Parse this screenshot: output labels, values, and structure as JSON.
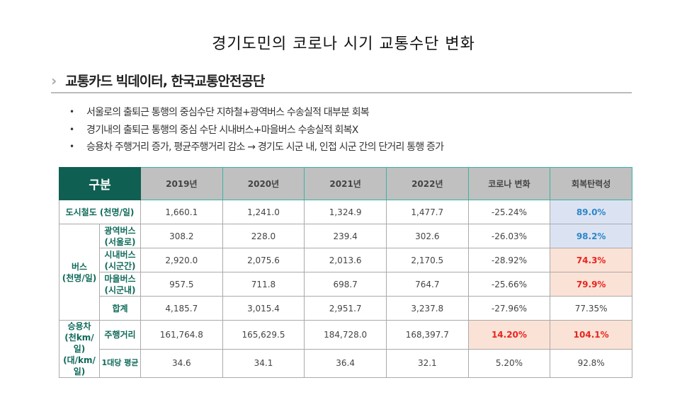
{
  "title": "경기도민의 코로나 시기 교통수단 변화",
  "section": {
    "icon": "chevron-right-icon",
    "heading": "교통카드 빅데이터, 한국교통안전공단"
  },
  "bullets": [
    "서울로의 출퇴근 통행의 중심수단 지하철+광역버스 수송실적 대부분 회복",
    "경기내의 출퇴근 통행의 중심 수단 시내버스+마을버스 수송실적 회복X",
    "승용차 주행거리 증가, 평균주행거리 감소 → 경기도 시군 내, 인접 시군 간의 단거리 통행 증가"
  ],
  "bullet_char": "•",
  "colors": {
    "header_dark": "#0f5f52",
    "header_gray": "#c0c0c0",
    "highlight_blue": "#dbe3f3",
    "highlight_red": "#fbe2d6"
  },
  "table": {
    "headers": [
      "구분",
      "2019년",
      "2020년",
      "2021년",
      "2022년",
      "코로나 변화",
      "회복탄력성"
    ],
    "groups": {
      "bus": "버스\n(천명/일)",
      "car": "승용차\n(천km/일)\n(대/km/일)"
    },
    "rows": [
      {
        "label": "도시철도 (천명/일)",
        "values": [
          "1,660.1",
          "1,241.0",
          "1,324.9",
          "1,477.7",
          "-25.24%",
          "89.0%"
        ]
      },
      {
        "label": "광역버스\n(서울로)",
        "values": [
          "308.2",
          "228.0",
          "239.4",
          "302.6",
          "-26.03%",
          "98.2%"
        ]
      },
      {
        "label": "시내버스\n(시군간)",
        "values": [
          "2,920.0",
          "2,075.6",
          "2,013.6",
          "2,170.5",
          "-28.92%",
          "74.3%"
        ]
      },
      {
        "label": "마을버스\n(시군내)",
        "values": [
          "957.5",
          "711.8",
          "698.7",
          "764.7",
          "-25.66%",
          "79.9%"
        ]
      },
      {
        "label": "합계",
        "values": [
          "4,185.7",
          "3,015.4",
          "2,951.7",
          "3,237.8",
          "-27.96%",
          "77.35%"
        ]
      },
      {
        "label": "주행거리",
        "values": [
          "161,764.8",
          "165,629.5",
          "184,728.0",
          "168,397.7",
          "14.20%",
          "104.1%"
        ]
      },
      {
        "label": "1대당 평균",
        "values": [
          "34.6",
          "34.1",
          "36.4",
          "32.1",
          "5.20%",
          "92.8%"
        ]
      }
    ]
  }
}
